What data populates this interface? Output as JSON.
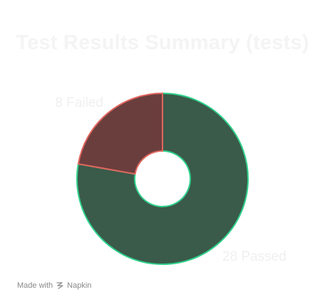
{
  "chart_data": {
    "type": "pie",
    "title": "Test Results Summary (tests)",
    "donut": true,
    "slices": [
      {
        "label": "Passed",
        "value": 28,
        "display": "28 Passed",
        "fill": "#3a5a4a",
        "stroke": "#2fd08a"
      },
      {
        "label": "Failed",
        "value": 8,
        "display": "8 Failed",
        "fill": "#6b3e3e",
        "stroke": "#e0665e"
      }
    ]
  },
  "footer": {
    "made_with": "Made with",
    "brand": "Napkin",
    "icon": "napkin-logo-icon"
  }
}
